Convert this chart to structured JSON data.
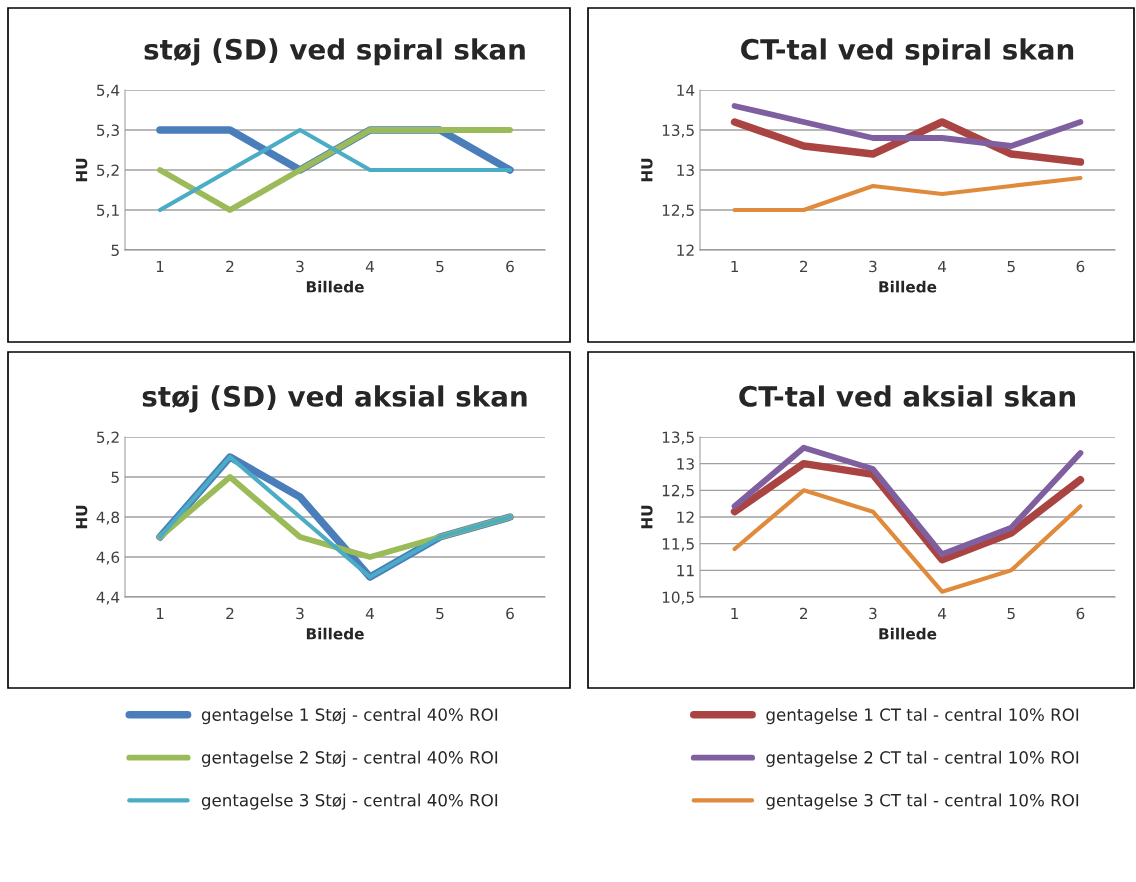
{
  "chart_data": [
    {
      "type": "line",
      "title": "støj (SD) ved spiral skan",
      "xlabel": "Billede",
      "ylabel": "HU",
      "categories": [
        "1",
        "2",
        "3",
        "4",
        "5",
        "6"
      ],
      "ylim": [
        5,
        5.4
      ],
      "yticks": [
        {
          "value": 5,
          "label": "5"
        },
        {
          "value": 5.1,
          "label": "5,1"
        },
        {
          "value": 5.2,
          "label": "5,2"
        },
        {
          "value": 5.3,
          "label": "5,3"
        },
        {
          "value": 5.4,
          "label": "5,4"
        }
      ],
      "grid": "y",
      "legend": false,
      "series": [
        {
          "color": "#4a7ebb",
          "values": [
            5.3,
            5.3,
            5.2,
            5.3,
            5.3,
            5.2
          ]
        },
        {
          "color": "#9bbb59",
          "values": [
            5.2,
            5.1,
            5.2,
            5.3,
            5.3,
            5.3
          ]
        },
        {
          "color": "#4bacc6",
          "values": [
            5.1,
            5.2,
            5.3,
            5.2,
            5.2,
            5.2
          ]
        }
      ]
    },
    {
      "type": "line",
      "title": "CT-tal ved spiral skan",
      "xlabel": "Billede",
      "ylabel": "HU",
      "categories": [
        "1",
        "2",
        "3",
        "4",
        "5",
        "6"
      ],
      "ylim": [
        12,
        14
      ],
      "yticks": [
        12,
        {
          "value": 12.5,
          "label": "12,5"
        },
        13,
        {
          "value": 13.5,
          "label": "13,5"
        },
        14
      ],
      "grid": "y",
      "legend": false,
      "series": [
        {
          "color": "#a94442",
          "values": [
            13.6,
            13.3,
            13.2,
            13.6,
            13.2,
            13.1
          ]
        },
        {
          "color": "#7f5f9f",
          "values": [
            13.8,
            13.6,
            13.4,
            13.4,
            13.3,
            13.6
          ]
        },
        {
          "color": "#e08a3c",
          "values": [
            12.5,
            12.5,
            12.8,
            12.7,
            12.8,
            12.9
          ]
        }
      ]
    },
    {
      "type": "line",
      "title": "støj (SD) ved aksial skan",
      "xlabel": "Billede",
      "ylabel": "HU",
      "categories": [
        "1",
        "2",
        "3",
        "4",
        "5",
        "6"
      ],
      "ylim": [
        4.4,
        5.2
      ],
      "yticks": [
        {
          "value": 4.4,
          "label": "4,4"
        },
        {
          "value": 4.6,
          "label": "4,6"
        },
        {
          "value": 4.8,
          "label": "4,8"
        },
        5,
        {
          "value": 5.2,
          "label": "5,2"
        }
      ],
      "grid": "y",
      "legend": "bottom",
      "series": [
        {
          "name": "gentagelse 1 Støj - central 40% ROI",
          "color": "#4a7ebb",
          "values": [
            4.7,
            5.1,
            4.9,
            4.5,
            4.7,
            4.8
          ]
        },
        {
          "name": "gentagelse 2 Støj - central 40% ROI",
          "color": "#9bbb59",
          "values": [
            4.7,
            5.0,
            4.7,
            4.6,
            4.7,
            4.8
          ]
        },
        {
          "name": "gentagelse 3 Støj - central 40% ROI",
          "color": "#4bacc6",
          "values": [
            4.7,
            5.1,
            4.8,
            4.5,
            4.7,
            4.8
          ]
        }
      ]
    },
    {
      "type": "line",
      "title": "CT-tal ved aksial skan",
      "xlabel": "Billede",
      "ylabel": "HU",
      "categories": [
        "1",
        "2",
        "3",
        "4",
        "5",
        "6"
      ],
      "ylim": [
        10.5,
        13.5
      ],
      "yticks": [
        {
          "value": 10.5,
          "label": "10,5"
        },
        11,
        {
          "value": 11.5,
          "label": "11,5"
        },
        12,
        {
          "value": 12.5,
          "label": "12,5"
        },
        13,
        {
          "value": 13.5,
          "label": "13,5"
        }
      ],
      "grid": "y",
      "legend": "bottom",
      "series": [
        {
          "name": "gentagelse 1 CT tal - central 10% ROI",
          "color": "#a94442",
          "values": [
            12.1,
            13.0,
            12.8,
            11.2,
            11.7,
            12.7
          ]
        },
        {
          "name": "gentagelse 2 CT tal - central 10% ROI",
          "color": "#7f5f9f",
          "values": [
            12.2,
            13.3,
            12.9,
            11.3,
            11.8,
            13.2
          ]
        },
        {
          "name": "gentagelse 3 CT tal - central 10% ROI",
          "color": "#e08a3c",
          "values": [
            11.4,
            12.5,
            12.1,
            10.6,
            11.0,
            12.2
          ]
        }
      ]
    }
  ]
}
